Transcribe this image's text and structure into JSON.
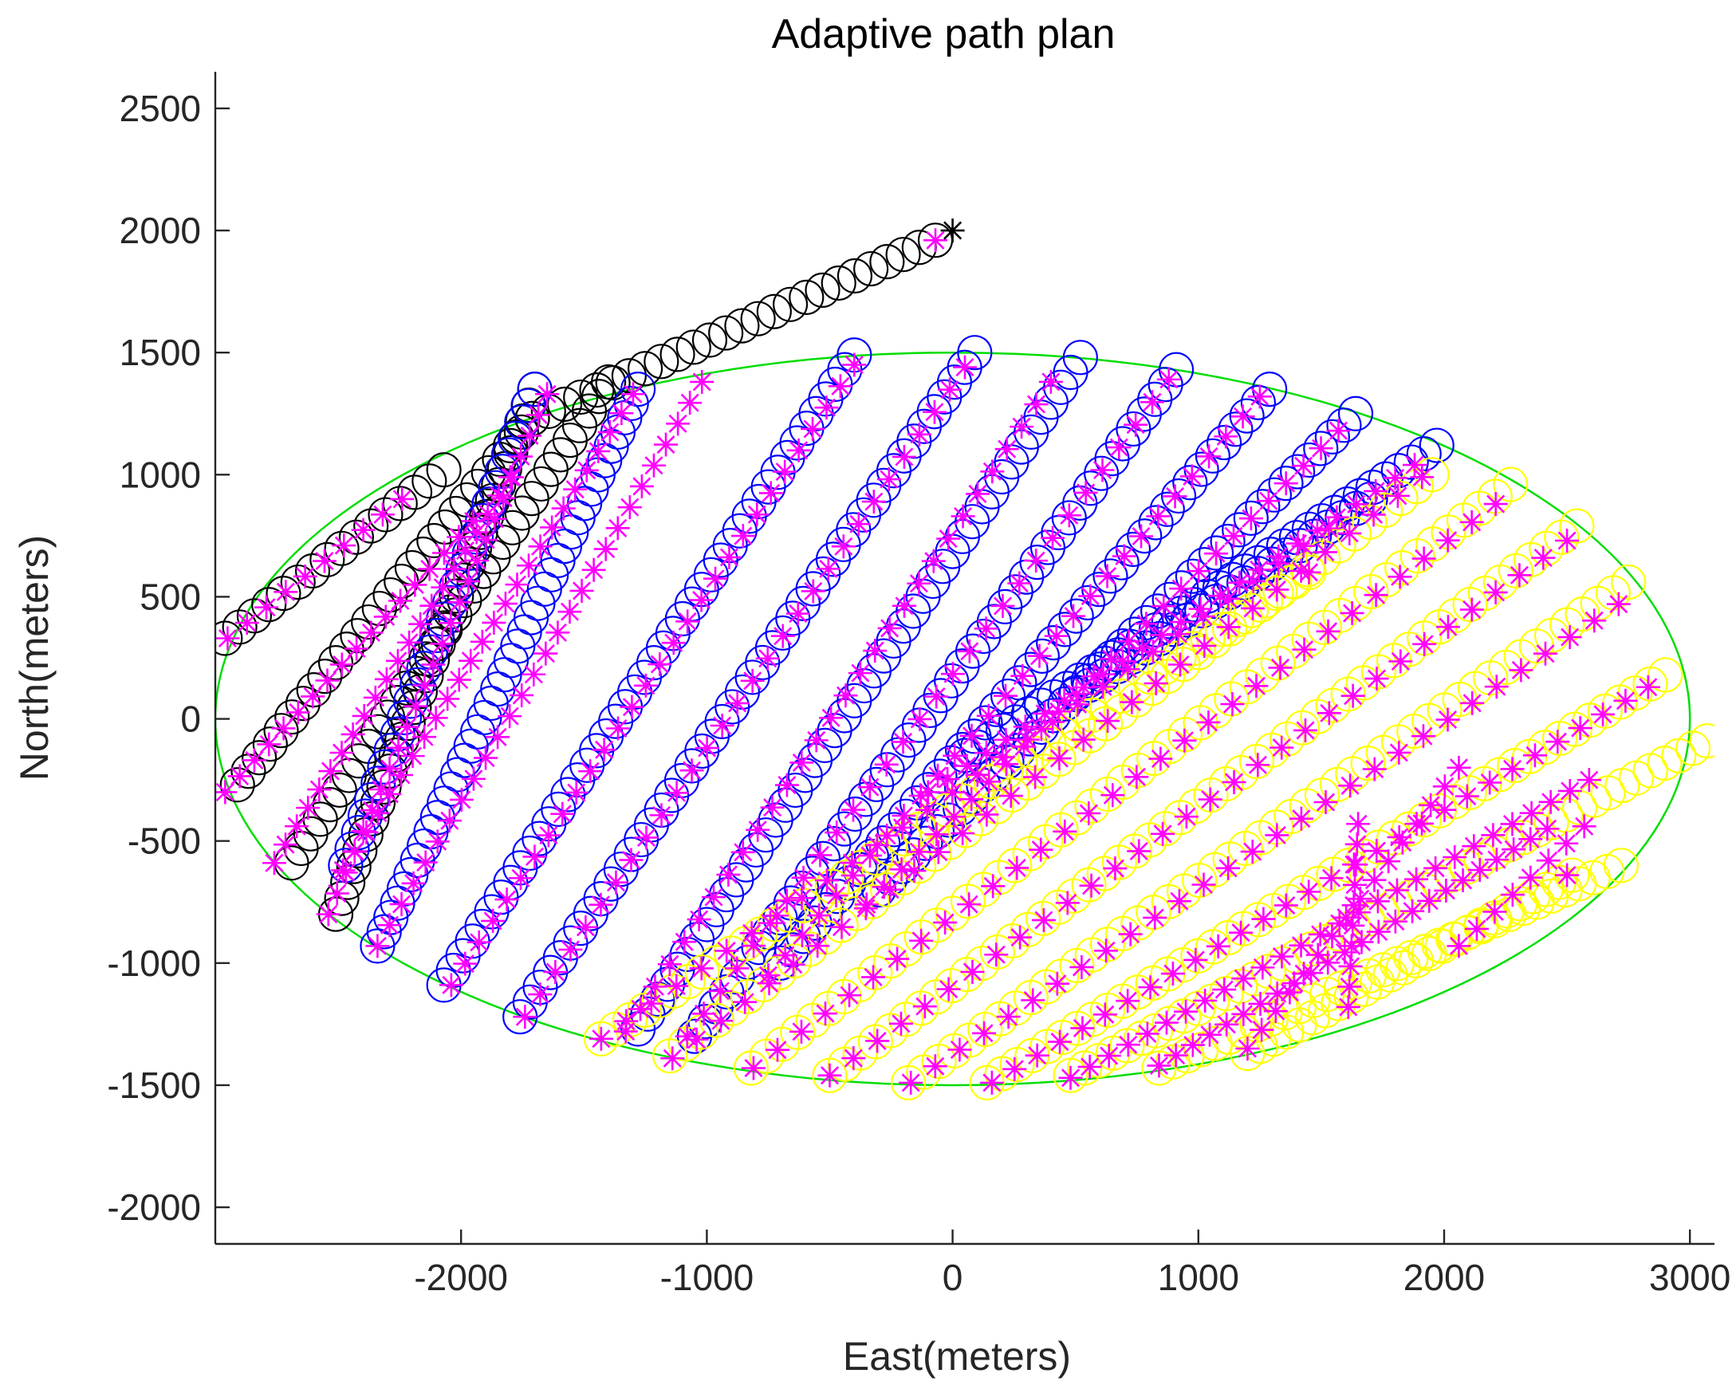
{
  "chart_data": {
    "type": "scatter",
    "title": "Adaptive path plan",
    "xlabel": "East(meters)",
    "ylabel": "North(meters)",
    "xlim": [
      -3000,
      3100
    ],
    "ylim": [
      -2150,
      2650
    ],
    "xticks": [
      -2000,
      -1000,
      0,
      1000,
      2000,
      3000
    ],
    "yticks": [
      -2000,
      -1500,
      -1000,
      -500,
      0,
      500,
      1000,
      1500,
      2000,
      2500
    ],
    "grid": false,
    "legend": "none",
    "colors": {
      "boundary": "#00dd00",
      "transit": "#000000",
      "covered": "#0000ff",
      "pending": "#ffff00",
      "samples": "#ff00ff",
      "axes": "#262626"
    },
    "boundary_ellipse": {
      "center": [
        0,
        0
      ],
      "semi_axis_east": 3000,
      "semi_axis_north": 1500
    },
    "start_point": [
      0,
      2000
    ],
    "paths": [
      {
        "color": "transit",
        "from": [
          -2070,
          1020
        ],
        "to": [
          -2960,
          330
        ],
        "n": 16
      },
      {
        "color": "transit",
        "from": [
          -1710,
          1230
        ],
        "to": [
          -2910,
          -270
        ],
        "n": 28
      },
      {
        "color": "transit",
        "from": [
          -1400,
          1380
        ],
        "to": [
          -2690,
          -590
        ],
        "n": 34
      },
      {
        "color": "transit",
        "from": [
          -1700,
          1350
        ],
        "to": [
          -2510,
          -800
        ],
        "n": 34
      },
      {
        "color": "transit",
        "from": [
          -70,
          1960
        ],
        "to": [
          -1710,
          1230
        ],
        "n": 26
      },
      {
        "color": "covered",
        "from": [
          -1700,
          1350
        ],
        "to": [
          -2470,
          -600
        ],
        "n": 30
      },
      {
        "color": "covered",
        "from": [
          -1280,
          1350
        ],
        "to": [
          -2340,
          -930
        ],
        "n": 40
      },
      {
        "color": "covered",
        "from": [
          -400,
          1490
        ],
        "to": [
          -2070,
          -1090
        ],
        "n": 44
      },
      {
        "color": "covered",
        "from": [
          90,
          1500
        ],
        "to": [
          -1760,
          -1220
        ],
        "n": 46
      },
      {
        "color": "covered",
        "from": [
          520,
          1480
        ],
        "to": [
          -1280,
          -1270
        ],
        "n": 46
      },
      {
        "color": "covered",
        "from": [
          910,
          1430
        ],
        "to": [
          -1050,
          -1300
        ],
        "n": 46
      },
      {
        "color": "covered",
        "from": [
          1290,
          1350
        ],
        "to": [
          -700,
          -1000
        ],
        "n": 44
      },
      {
        "color": "covered",
        "from": [
          1640,
          1250
        ],
        "to": [
          -300,
          -700
        ],
        "n": 42
      },
      {
        "color": "covered",
        "from": [
          1970,
          1120
        ],
        "to": [
          50,
          -150
        ],
        "n": 38
      },
      {
        "color": "covered",
        "from": [
          1700,
          900
        ],
        "to": [
          500,
          100
        ],
        "n": 22
      },
      {
        "color": "pending",
        "from": [
          1450,
          600
        ],
        "to": [
          -1430,
          -1310
        ],
        "n": 50
      },
      {
        "color": "pending",
        "from": [
          1950,
          1000
        ],
        "to": [
          -1150,
          -1380
        ],
        "n": 50
      },
      {
        "color": "pending",
        "from": [
          2270,
          960
        ],
        "to": [
          -820,
          -1430
        ],
        "n": 50
      },
      {
        "color": "pending",
        "from": [
          2540,
          790
        ],
        "to": [
          -500,
          -1460
        ],
        "n": 50
      },
      {
        "color": "pending",
        "from": [
          2750,
          560
        ],
        "to": [
          -180,
          -1490
        ],
        "n": 48
      },
      {
        "color": "pending",
        "from": [
          2900,
          180
        ],
        "to": [
          140,
          -1490
        ],
        "n": 46
      },
      {
        "color": "pending",
        "from": [
          3070,
          -90
        ],
        "to": [
          480,
          -1460
        ],
        "n": 46
      },
      {
        "color": "pending",
        "from": [
          2720,
          -600
        ],
        "to": [
          840,
          -1430
        ],
        "n": 34
      },
      {
        "color": "pending",
        "from": [
          2520,
          -640
        ],
        "to": [
          1200,
          -1370
        ],
        "n": 26
      }
    ],
    "sample_lines": [
      {
        "from": [
          -2240,
          900
        ],
        "to": [
          -2950,
          330
        ],
        "n": 10
      },
      {
        "from": [
          -1950,
          810
        ],
        "to": [
          -2960,
          -300
        ],
        "n": 18
      },
      {
        "from": [
          -1800,
          990
        ],
        "to": [
          -2760,
          -590
        ],
        "n": 22
      },
      {
        "from": [
          -1650,
          1330
        ],
        "to": [
          -2540,
          -800
        ],
        "n": 26
      },
      {
        "from": [
          -1300,
          1330
        ],
        "to": [
          -2480,
          -620
        ],
        "n": 26
      },
      {
        "from": [
          -1020,
          1380
        ],
        "to": [
          -2340,
          -930
        ],
        "n": 28
      },
      {
        "from": [
          -400,
          1450
        ],
        "to": [
          -2040,
          -1090
        ],
        "n": 30
      },
      {
        "from": [
          50,
          1440
        ],
        "to": [
          -1740,
          -1220
        ],
        "n": 30
      },
      {
        "from": [
          400,
          1380
        ],
        "to": [
          -1330,
          -1280
        ],
        "n": 30
      },
      {
        "from": [
          880,
          1390
        ],
        "to": [
          -1080,
          -1300
        ],
        "n": 30
      },
      {
        "from": [
          1250,
          1320
        ],
        "to": [
          -750,
          -1050
        ],
        "n": 30
      },
      {
        "from": [
          1570,
          1180
        ],
        "to": [
          -350,
          -760
        ],
        "n": 28
      },
      {
        "from": [
          1880,
          1040
        ],
        "to": [
          -100,
          -300
        ],
        "n": 26
      },
      {
        "from": [
          1530,
          780
        ],
        "to": [
          -1430,
          -1310
        ],
        "n": 30
      },
      {
        "from": [
          1910,
          990
        ],
        "to": [
          -1140,
          -1390
        ],
        "n": 32
      },
      {
        "from": [
          2210,
          880
        ],
        "to": [
          -810,
          -1430
        ],
        "n": 32
      },
      {
        "from": [
          2500,
          730
        ],
        "to": [
          -500,
          -1460
        ],
        "n": 32
      },
      {
        "from": [
          2710,
          470
        ],
        "to": [
          -170,
          -1490
        ],
        "n": 30
      },
      {
        "from": [
          2830,
          130
        ],
        "to": [
          160,
          -1490
        ],
        "n": 30
      },
      {
        "from": [
          2590,
          -250
        ],
        "to": [
          480,
          -1470
        ],
        "n": 28
      },
      {
        "from": [
          2420,
          -450
        ],
        "to": [
          840,
          -1420
        ],
        "n": 24
      },
      {
        "from": [
          2060,
          -200
        ],
        "to": [
          1200,
          -1350
        ],
        "n": 16
      },
      {
        "from": [
          1650,
          -430
        ],
        "to": [
          1610,
          -1180
        ],
        "n": 10
      },
      {
        "from": [
          2570,
          -440
        ],
        "to": [
          2060,
          -930
        ],
        "n": 8
      }
    ],
    "sample_points": [
      [
        -70,
        1960
      ],
      [
        2500,
        -640
      ],
      [
        1450,
        600
      ]
    ]
  }
}
